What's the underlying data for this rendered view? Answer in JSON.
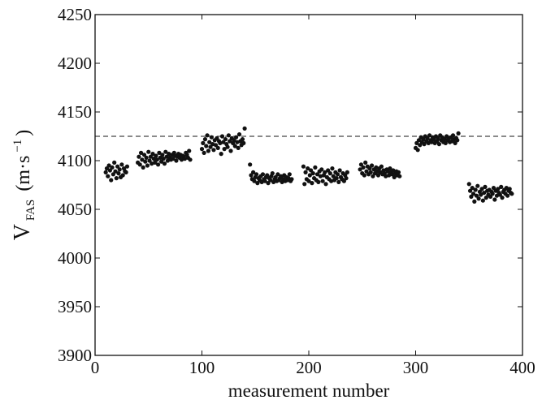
{
  "chart_data": {
    "type": "scatter",
    "xlabel": "measurement number",
    "ylabel": {
      "main": "V",
      "subscript": "FAS",
      "unit_open": "(m·s",
      "unit_sup": "−1",
      "unit_close": ")"
    },
    "xlim": [
      0,
      400
    ],
    "ylim": [
      3900,
      4250
    ],
    "xticks": [
      0,
      100,
      200,
      300,
      400
    ],
    "xtick_labels": [
      "0",
      "100",
      "200",
      "300",
      "400"
    ],
    "yticks": [
      3900,
      3950,
      4000,
      4050,
      4100,
      4150,
      4200,
      4250
    ],
    "ytick_labels": [
      "3900",
      "3950",
      "4000",
      "4050",
      "4100",
      "4150",
      "4200",
      "4250"
    ],
    "grid": false,
    "reference_line": {
      "y": 4125,
      "style": "dashed"
    },
    "marker_color": "#111111",
    "series": [
      {
        "x": [
          10,
          11,
          12,
          13,
          14,
          15,
          16,
          17,
          18,
          19,
          20,
          21,
          22,
          23,
          24,
          25,
          26,
          27,
          28,
          29,
          30,
          40,
          41,
          42,
          43,
          44,
          45,
          46,
          47,
          48,
          49,
          50,
          51,
          52,
          53,
          54,
          55,
          56,
          57,
          58,
          59,
          60,
          61,
          62,
          63,
          64,
          65,
          66,
          67,
          68,
          69,
          70,
          71,
          72,
          73,
          74,
          75,
          76,
          77,
          78,
          79,
          80,
          81,
          82,
          83,
          84,
          85,
          86,
          87,
          88,
          89,
          100,
          101,
          102,
          103,
          104,
          105,
          106,
          107,
          108,
          109,
          110,
          111,
          112,
          113,
          114,
          115,
          116,
          117,
          118,
          119,
          120,
          121,
          122,
          123,
          124,
          125,
          126,
          127,
          128,
          129,
          130,
          131,
          132,
          133,
          134,
          135,
          136,
          137,
          138,
          139,
          140,
          145,
          146,
          147,
          148,
          149,
          150,
          151,
          152,
          153,
          154,
          155,
          156,
          157,
          158,
          159,
          160,
          161,
          162,
          163,
          164,
          165,
          166,
          167,
          168,
          169,
          170,
          171,
          172,
          173,
          174,
          175,
          176,
          177,
          178,
          179,
          180,
          181,
          182,
          183,
          184,
          195,
          196,
          197,
          198,
          199,
          200,
          201,
          202,
          203,
          204,
          205,
          206,
          207,
          208,
          209,
          210,
          211,
          212,
          213,
          214,
          215,
          216,
          217,
          218,
          219,
          220,
          221,
          222,
          223,
          224,
          225,
          226,
          227,
          228,
          229,
          230,
          231,
          232,
          233,
          234,
          235,
          236,
          248,
          249,
          250,
          251,
          252,
          253,
          254,
          255,
          256,
          257,
          258,
          259,
          260,
          261,
          262,
          263,
          264,
          265,
          266,
          267,
          268,
          269,
          270,
          271,
          272,
          273,
          274,
          275,
          276,
          277,
          278,
          279,
          280,
          281,
          282,
          283,
          284,
          285,
          300,
          301,
          302,
          303,
          304,
          305,
          306,
          307,
          308,
          309,
          310,
          311,
          312,
          313,
          314,
          315,
          316,
          317,
          318,
          319,
          320,
          321,
          322,
          323,
          324,
          325,
          326,
          327,
          328,
          329,
          330,
          331,
          332,
          333,
          334,
          335,
          336,
          337,
          338,
          339,
          340,
          350,
          351,
          352,
          353,
          354,
          355,
          356,
          357,
          358,
          359,
          360,
          361,
          362,
          363,
          364,
          365,
          366,
          367,
          368,
          369,
          370,
          371,
          372,
          373,
          374,
          375,
          376,
          377,
          378,
          379,
          380,
          381,
          382,
          383,
          384,
          385,
          386,
          387,
          388,
          389,
          390
        ],
        "y": [
          4088,
          4092,
          4084,
          4095,
          4090,
          4080,
          4093,
          4086,
          4098,
          4089,
          4082,
          4094,
          4087,
          4091,
          4083,
          4096,
          4085,
          4092,
          4089,
          4088,
          4094,
          4098,
          4104,
          4096,
          4108,
          4101,
          4093,
          4106,
          4099,
          4103,
          4095,
          4109,
          4100,
          4104,
          4097,
          4107,
          4102,
          4098,
          4105,
          4101,
          4096,
          4108,
          4103,
          4099,
          4106,
          4102,
          4097,
          4109,
          4104,
          4100,
          4107,
          4103,
          4101,
          4106,
          4102,
          4108,
          4105,
          4100,
          4104,
          4107,
          4103,
          4106,
          4101,
          4105,
          4104,
          4102,
          4108,
          4106,
          4103,
          4110,
          4101,
          4112,
          4118,
          4108,
          4122,
          4115,
          4126,
          4110,
          4119,
          4114,
          4124,
          4117,
          4111,
          4121,
          4116,
          4123,
          4113,
          4120,
          4118,
          4107,
          4125,
          4119,
          4112,
          4122,
          4117,
          4114,
          4126,
          4120,
          4110,
          4123,
          4118,
          4121,
          4115,
          4124,
          4119,
          4113,
          4127,
          4120,
          4116,
          4122,
          4118,
          4133,
          4096,
          4085,
          4081,
          4088,
          4079,
          4083,
          4086,
          4077,
          4082,
          4080,
          4084,
          4078,
          4086,
          4081,
          4079,
          4083,
          4085,
          4077,
          4082,
          4080,
          4084,
          4087,
          4078,
          4081,
          4083,
          4079,
          4086,
          4080,
          4082,
          4084,
          4078,
          4081,
          4085,
          4079,
          4083,
          4080,
          4082,
          4086,
          4079,
          4081,
          4094,
          4076,
          4088,
          4081,
          4092,
          4079,
          4085,
          4090,
          4077,
          4087,
          4082,
          4093,
          4080,
          4086,
          4078,
          4089,
          4084,
          4091,
          4079,
          4085,
          4088,
          4076,
          4083,
          4090,
          4081,
          4087,
          4079,
          4092,
          4084,
          4080,
          4088,
          4082,
          4086,
          4078,
          4090,
          4083,
          4081,
          4087,
          4079,
          4085,
          4082,
          4088,
          4091,
          4096,
          4087,
          4093,
          4085,
          4098,
          4089,
          4094,
          4086,
          4092,
          4088,
          4095,
          4084,
          4091,
          4087,
          4093,
          4089,
          4085,
          4092,
          4088,
          4094,
          4086,
          4090,
          4087,
          4084,
          4091,
          4089,
          4085,
          4092,
          4088,
          4086,
          4090,
          4083,
          4087,
          4089,
          4085,
          4088,
          4084,
          4113,
          4118,
          4111,
          4121,
          4116,
          4124,
          4119,
          4122,
          4117,
          4125,
          4120,
          4123,
          4118,
          4126,
          4121,
          4119,
          4124,
          4122,
          4118,
          4125,
          4120,
          4123,
          4117,
          4126,
          4121,
          4124,
          4119,
          4122,
          4118,
          4125,
          4121,
          4123,
          4119,
          4124,
          4120,
          4126,
          4122,
          4118,
          4123,
          4121,
          4128,
          4076,
          4069,
          4063,
          4072,
          4066,
          4058,
          4070,
          4064,
          4074,
          4061,
          4068,
          4065,
          4071,
          4059,
          4067,
          4073,
          4062,
          4069,
          4065,
          4070,
          4063,
          4068,
          4066,
          4072,
          4060,
          4069,
          4064,
          4071,
          4067,
          4065,
          4073,
          4062,
          4068,
          4070,
          4066,
          4072,
          4064,
          4069,
          4071,
          4067,
          4066
        ]
      }
    ]
  }
}
